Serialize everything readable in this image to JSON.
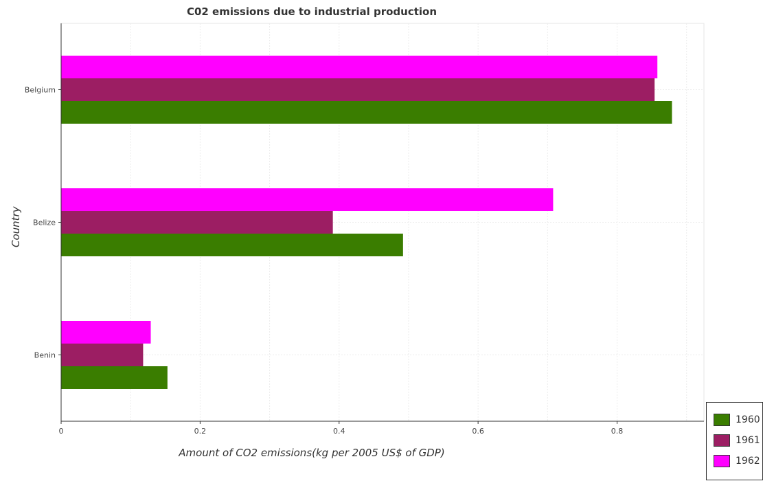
{
  "chart_data": {
    "type": "bar",
    "orientation": "horizontal",
    "title": "C02 emissions due to industrial production",
    "xlabel": "Amount of CO2 emissions(kg per 2005 US$ of GDP)",
    "ylabel": "Country",
    "categories": [
      "Belgium",
      "Belize",
      "Benin"
    ],
    "series": [
      {
        "name": "1960",
        "color": "#3a7d00",
        "values": [
          0.879,
          0.492,
          0.153
        ]
      },
      {
        "name": "1961",
        "color": "#9c1e63",
        "values": [
          0.854,
          0.391,
          0.118
        ]
      },
      {
        "name": "1962",
        "color": "#ff00ff",
        "values": [
          0.858,
          0.708,
          0.129
        ]
      }
    ],
    "xlim": [
      0,
      0.925
    ],
    "xticks": [
      0,
      0.2,
      0.4,
      0.6,
      0.8
    ],
    "xtick_labels": [
      "0",
      "0.2",
      "0.4",
      "0.6",
      "0.8"
    ],
    "grid": true,
    "legend_position": "bottom-right"
  }
}
